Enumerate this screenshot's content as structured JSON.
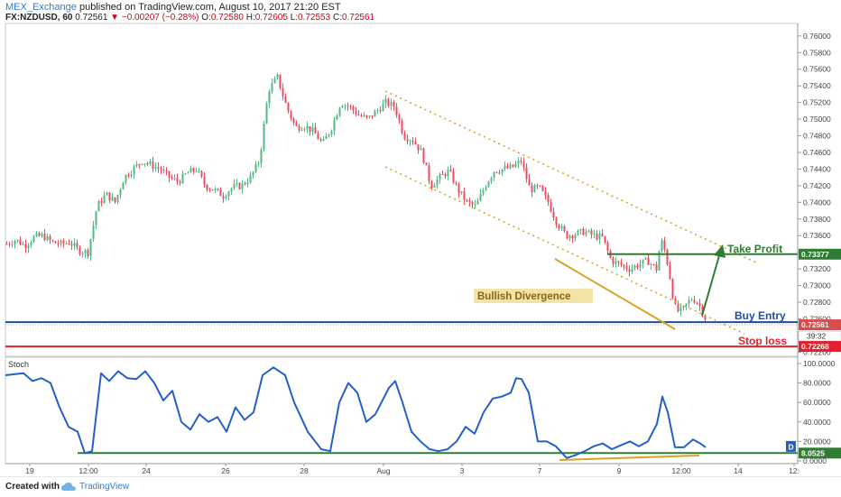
{
  "header": {
    "publisher": "MEX_Exchange",
    "published_text": "published on TradingView.com, August 10, 2017 21:20 EST",
    "symbol": "FX:NZDUSD, 60",
    "last": "0.72561",
    "change": "▼ −0.00207 (−0.28%)",
    "o_label": "O:",
    "o": "0.72580",
    "h_label": "H:",
    "h": "0.72605",
    "l_label": "L:",
    "l": "0.72553",
    "c_label": "C:",
    "c": "0.72561"
  },
  "footer": {
    "created_with": "Created with",
    "brand": "TradingView"
  },
  "colors": {
    "up": "#53b987",
    "down": "#eb4d5c",
    "take_profit": "#2e7d32",
    "buy_entry": "#1f4e9c",
    "stop_loss": "#e5202e",
    "channel": "#d8a328",
    "stoch": "#2460c8",
    "stoch_level": "#2e7d32",
    "divergence": "#d8a328"
  },
  "chart_data": [
    {
      "type": "candlestick",
      "ylim": [
        0.7215,
        0.7615
      ],
      "y_ticks": [
        "0.76000",
        "0.75800",
        "0.75600",
        "0.75400",
        "0.75200",
        "0.75000",
        "0.74800",
        "0.74600",
        "0.74400",
        "0.74200",
        "0.74000",
        "0.73800",
        "0.73600",
        "0.73400",
        "0.73200",
        "0.73000",
        "0.72800",
        "0.72600",
        "0.72400",
        "0.72200"
      ],
      "x_ticks": [
        "19",
        "12:00",
        "24",
        "26",
        "28",
        "Aug",
        "3",
        "7",
        "9",
        "12:00",
        "14",
        "12:"
      ],
      "levels": {
        "take_profit": 0.73377,
        "buy_entry": 0.72561,
        "stop_loss": 0.72268
      },
      "level_labels": {
        "take_profit": "0.73377",
        "buy_entry": "0.72561",
        "stop_loss": "0.72268",
        "countdown": "39:32"
      },
      "annotations": {
        "take_profit": "Take Profit",
        "buy_entry": "Buy Entry",
        "stop_loss": "Stop loss",
        "divergence": "Bullish Divergence"
      },
      "price_path": [
        [
          0,
          0.735
        ],
        [
          10,
          0.7355
        ],
        [
          20,
          0.7348
        ],
        [
          30,
          0.7358
        ],
        [
          40,
          0.736
        ],
        [
          50,
          0.7352
        ],
        [
          60,
          0.735
        ],
        [
          70,
          0.7352
        ],
        [
          80,
          0.7342
        ],
        [
          90,
          0.734
        ],
        [
          100,
          0.7395
        ],
        [
          110,
          0.741
        ],
        [
          120,
          0.74
        ],
        [
          130,
          0.743
        ],
        [
          140,
          0.744
        ],
        [
          150,
          0.745
        ],
        [
          160,
          0.7445
        ],
        [
          170,
          0.744
        ],
        [
          180,
          0.743
        ],
        [
          190,
          0.7425
        ],
        [
          200,
          0.7435
        ],
        [
          210,
          0.744
        ],
        [
          220,
          0.742
        ],
        [
          230,
          0.7415
        ],
        [
          240,
          0.7408
        ],
        [
          250,
          0.7418
        ],
        [
          260,
          0.742
        ],
        [
          270,
          0.743
        ],
        [
          280,
          0.745
        ],
        [
          290,
          0.7535
        ],
        [
          300,
          0.755
        ],
        [
          310,
          0.7515
        ],
        [
          320,
          0.749
        ],
        [
          330,
          0.7492
        ],
        [
          340,
          0.7485
        ],
        [
          350,
          0.747
        ],
        [
          360,
          0.749
        ],
        [
          370,
          0.752
        ],
        [
          380,
          0.7515
        ],
        [
          390,
          0.7505
        ],
        [
          400,
          0.75
        ],
        [
          410,
          0.751
        ],
        [
          420,
          0.752
        ],
        [
          430,
          0.7515
        ],
        [
          440,
          0.748
        ],
        [
          450,
          0.7475
        ],
        [
          460,
          0.746
        ],
        [
          470,
          0.742
        ],
        [
          480,
          0.743
        ],
        [
          490,
          0.7438
        ],
        [
          500,
          0.7415
        ],
        [
          510,
          0.74
        ],
        [
          520,
          0.7395
        ],
        [
          530,
          0.742
        ],
        [
          540,
          0.7438
        ],
        [
          550,
          0.744
        ],
        [
          560,
          0.7442
        ],
        [
          570,
          0.745
        ],
        [
          580,
          0.7415
        ],
        [
          590,
          0.7418
        ],
        [
          600,
          0.74
        ],
        [
          610,
          0.7375
        ],
        [
          620,
          0.736
        ],
        [
          630,
          0.7362
        ],
        [
          640,
          0.7365
        ],
        [
          650,
          0.736
        ],
        [
          660,
          0.7358
        ],
        [
          670,
          0.733
        ],
        [
          680,
          0.7325
        ],
        [
          690,
          0.732
        ],
        [
          700,
          0.7325
        ],
        [
          710,
          0.733
        ],
        [
          720,
          0.732
        ],
        [
          725,
          0.7355
        ],
        [
          730,
          0.734
        ],
        [
          735,
          0.731
        ],
        [
          740,
          0.7275
        ],
        [
          745,
          0.7268
        ],
        [
          750,
          0.7272
        ],
        [
          755,
          0.728
        ],
        [
          760,
          0.7285
        ],
        [
          765,
          0.728
        ],
        [
          770,
          0.7272
        ],
        [
          776,
          0.7256
        ]
      ]
    },
    {
      "type": "line",
      "title": "Stoch",
      "ylim": [
        0,
        100
      ],
      "y_ticks": [
        "100.0000",
        "80.0000",
        "60.0000",
        "40.0000",
        "20.0000",
        "0.0000"
      ],
      "level": 8.0525,
      "level_label": "8.0525",
      "tag": "D",
      "series": [
        [
          0,
          88
        ],
        [
          20,
          90
        ],
        [
          30,
          82
        ],
        [
          40,
          85
        ],
        [
          50,
          80
        ],
        [
          60,
          55
        ],
        [
          70,
          35
        ],
        [
          80,
          30
        ],
        [
          88,
          8
        ],
        [
          96,
          10
        ],
        [
          106,
          90
        ],
        [
          115,
          82
        ],
        [
          125,
          92
        ],
        [
          135,
          85
        ],
        [
          145,
          84
        ],
        [
          155,
          92
        ],
        [
          165,
          80
        ],
        [
          175,
          62
        ],
        [
          185,
          72
        ],
        [
          195,
          40
        ],
        [
          205,
          32
        ],
        [
          215,
          48
        ],
        [
          225,
          40
        ],
        [
          235,
          45
        ],
        [
          245,
          30
        ],
        [
          255,
          55
        ],
        [
          265,
          42
        ],
        [
          275,
          50
        ],
        [
          285,
          88
        ],
        [
          297,
          96
        ],
        [
          310,
          88
        ],
        [
          320,
          60
        ],
        [
          335,
          30
        ],
        [
          350,
          12
        ],
        [
          360,
          10
        ],
        [
          370,
          60
        ],
        [
          380,
          80
        ],
        [
          390,
          70
        ],
        [
          400,
          40
        ],
        [
          410,
          48
        ],
        [
          425,
          75
        ],
        [
          432,
          82
        ],
        [
          440,
          60
        ],
        [
          450,
          30
        ],
        [
          460,
          20
        ],
        [
          470,
          12
        ],
        [
          480,
          10
        ],
        [
          490,
          12
        ],
        [
          500,
          20
        ],
        [
          510,
          35
        ],
        [
          520,
          28
        ],
        [
          530,
          50
        ],
        [
          540,
          64
        ],
        [
          550,
          66
        ],
        [
          560,
          70
        ],
        [
          566,
          85
        ],
        [
          572,
          84
        ],
        [
          580,
          70
        ],
        [
          590,
          20
        ],
        [
          600,
          20
        ],
        [
          610,
          15
        ],
        [
          622,
          3
        ],
        [
          632,
          6
        ],
        [
          642,
          10
        ],
        [
          652,
          15
        ],
        [
          662,
          18
        ],
        [
          672,
          12
        ],
        [
          682,
          16
        ],
        [
          692,
          20
        ],
        [
          702,
          15
        ],
        [
          712,
          20
        ],
        [
          722,
          38
        ],
        [
          728,
          66
        ],
        [
          734,
          50
        ],
        [
          742,
          14
        ],
        [
          752,
          14
        ],
        [
          762,
          22
        ],
        [
          770,
          18
        ],
        [
          776,
          14
        ]
      ]
    }
  ]
}
